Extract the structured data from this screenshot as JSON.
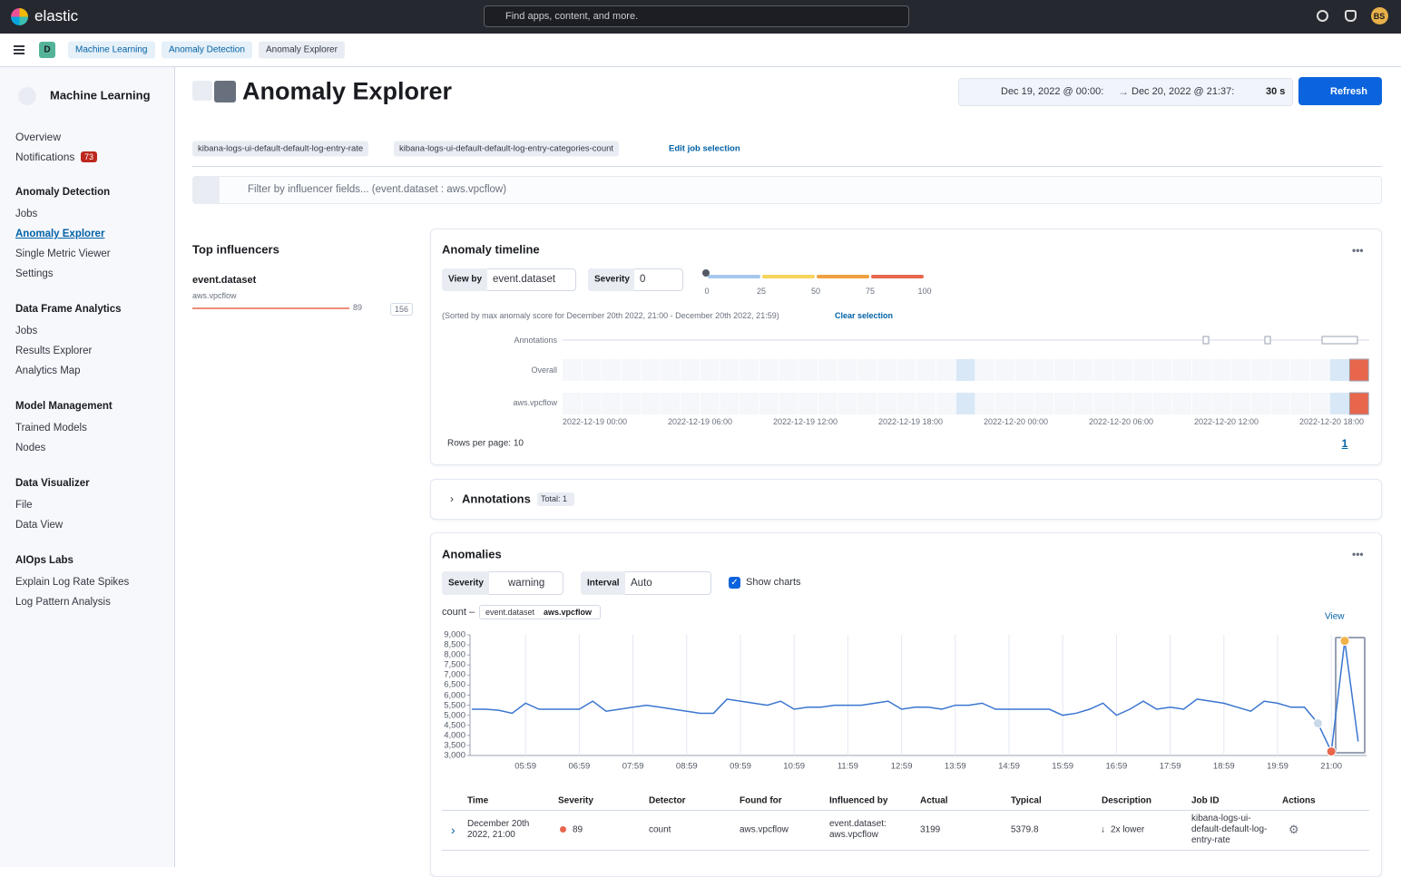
{
  "top_bar": {
    "brand": "elastic",
    "search_placeholder": "Find apps, content, and more.",
    "avatar": "BS"
  },
  "breadcrumbs": {
    "space": "D",
    "items": [
      "Machine Learning",
      "Anomaly Detection",
      "Anomaly Explorer"
    ]
  },
  "sidebar": {
    "title": "Machine Learning",
    "items": [
      "Overview",
      "Notifications"
    ],
    "notifications_badge": "73",
    "sections": [
      {
        "heading": "Anomaly Detection",
        "items": [
          "Jobs",
          "Anomaly Explorer",
          "Single Metric Viewer",
          "Settings"
        ]
      },
      {
        "heading": "Data Frame Analytics",
        "items": [
          "Jobs",
          "Results Explorer",
          "Analytics Map"
        ]
      },
      {
        "heading": "Model Management",
        "items": [
          "Trained Models",
          "Nodes"
        ]
      },
      {
        "heading": "Data Visualizer",
        "items": [
          "File",
          "Data View"
        ]
      },
      {
        "heading": "AIOps Labs",
        "items": [
          "Explain Log Rate Spikes",
          "Log Pattern Analysis"
        ]
      }
    ]
  },
  "header": {
    "title": "Anomaly Explorer",
    "date_start": "Dec 19, 2022 @ 00:00:",
    "date_end": "Dec 20, 2022 @ 21:37:",
    "refresh_interval": "30 s",
    "refresh_button": "Refresh"
  },
  "job_selection": {
    "jobs": [
      "kibana-logs-ui-default-default-log-entry-rate",
      "kibana-logs-ui-default-default-log-entry-categories-count"
    ],
    "edit": "Edit job selection"
  },
  "filter": {
    "placeholder": "Filter by influencer fields... (event.dataset : aws.vpcflow)"
  },
  "top_influencers": {
    "title": "Top influencers",
    "field": "event.dataset",
    "value": "aws.vpcflow",
    "max_score": "89",
    "total_score": "156"
  },
  "anomaly_timeline": {
    "title": "Anomaly timeline",
    "view_by_label": "View by",
    "view_by": "event.dataset",
    "severity_label": "Severity",
    "severity_value": "0",
    "severity_scale": [
      0,
      25,
      50,
      75,
      100
    ],
    "sort_note": "(Sorted by max anomaly score for December 20th 2022, 21:00 - December 20th 2022, 21:59)",
    "clear_selection": "Clear selection",
    "row_labels": [
      "Annotations",
      "Overall",
      "aws.vpcflow"
    ],
    "x_labels": [
      "2022-12-19 00:00",
      "2022-12-19 06:00",
      "2022-12-19 12:00",
      "2022-12-19 18:00",
      "2022-12-20 00:00",
      "2022-12-20 06:00",
      "2022-12-20 12:00",
      "2022-12-20 18:00"
    ],
    "rows_per_page": "Rows per page: 10",
    "page": "1"
  },
  "annotations": {
    "title": "Annotations",
    "total": "Total: 1"
  },
  "anomalies": {
    "title": "Anomalies",
    "severity_label": "Severity",
    "severity": "warning",
    "interval_label": "Interval",
    "interval": "Auto",
    "show_charts": "Show charts",
    "view": "View",
    "table": {
      "columns": [
        "Time",
        "Severity",
        "Detector",
        "Found for",
        "Influenced by",
        "Actual",
        "Typical",
        "Description",
        "Job ID",
        "Actions"
      ],
      "rows": [
        [
          "December 20th 2022, 21:00",
          "89",
          "count",
          "aws.vpcflow",
          "event.dataset: aws.vpcflow",
          "3199",
          "5379.8",
          "2x lower",
          "kibana-logs-ui-default-default-log-entry-rate"
        ]
      ]
    }
  },
  "chart_data": {
    "type": "line",
    "title": "count –",
    "entity_field": "event.dataset",
    "entity_value": "aws.vpcflow",
    "xticks": [
      "05:59",
      "06:59",
      "07:59",
      "08:59",
      "09:59",
      "10:59",
      "11:59",
      "12:59",
      "13:59",
      "14:59",
      "15:59",
      "16:59",
      "17:59",
      "18:59",
      "19:59",
      "21:00"
    ],
    "values": [
      5300,
      5300,
      5250,
      5100,
      5600,
      5300,
      5300,
      5300,
      5300,
      5700,
      5200,
      5300,
      5400,
      5500,
      5400,
      5300,
      5200,
      5100,
      5100,
      5800,
      5700,
      5600,
      5500,
      5700,
      5300,
      5400,
      5400,
      5500,
      5500,
      5500,
      5600,
      5700,
      5300,
      5400,
      5400,
      5300,
      5500,
      5500,
      5600,
      5300,
      5300,
      5300,
      5300,
      5300,
      5000,
      5100,
      5300,
      5600,
      5000,
      5300,
      5700,
      5300,
      5400,
      5300,
      5800,
      5700,
      5600,
      5400,
      5200,
      5700,
      5600,
      5400,
      5400,
      4600,
      3199,
      8700,
      3700
    ],
    "color": "#3a75d0",
    "point_colors": [
      null,
      null,
      null,
      null,
      null,
      null,
      null,
      null,
      null,
      null,
      null,
      null,
      null,
      null,
      null,
      null,
      null,
      null,
      null,
      null,
      null,
      null,
      null,
      null,
      null,
      null,
      null,
      null,
      null,
      null,
      null,
      null,
      null,
      null,
      null,
      null,
      null,
      null,
      null,
      null,
      null,
      null,
      null,
      null,
      null,
      null,
      null,
      null,
      null,
      null,
      null,
      null,
      null,
      null,
      null,
      null,
      null,
      null,
      null,
      null,
      null,
      null,
      null,
      "#c9d9ea",
      "#e7664c",
      "#f1b24a",
      null
    ],
    "ylim": [
      3000,
      9000
    ],
    "yticks": [
      {
        "value": 3000,
        "label": "3,000"
      },
      {
        "value": 3500,
        "label": "3,500"
      },
      {
        "value": 4000,
        "label": "4,000"
      },
      {
        "value": 4500,
        "label": "4,500"
      },
      {
        "value": 5000,
        "label": "5,000"
      },
      {
        "value": 5500,
        "label": "5,500"
      },
      {
        "value": 6000,
        "label": "6,000"
      },
      {
        "value": 6500,
        "label": "6,500"
      },
      {
        "value": 7000,
        "label": "7,000"
      },
      {
        "value": 7500,
        "label": "7,500"
      },
      {
        "value": 8000,
        "label": "8,000"
      },
      {
        "value": 8500,
        "label": "8,500"
      },
      {
        "value": 9000,
        "label": "9,000"
      }
    ],
    "grid": true
  }
}
